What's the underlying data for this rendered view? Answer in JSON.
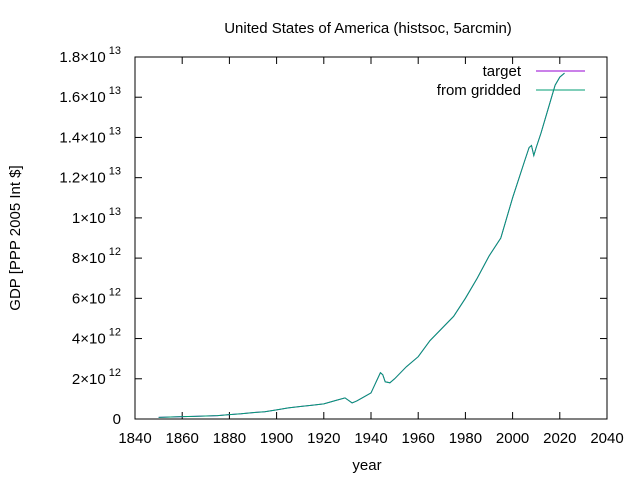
{
  "chart_data": {
    "type": "line",
    "title": "United States of America (histsoc, 5arcmin)",
    "xlabel": "year",
    "ylabel": "GDP [PPP 2005 Int $]",
    "xlim": [
      1840,
      2040
    ],
    "ylim": [
      0,
      18000000000000.0
    ],
    "x_ticks": [
      1840,
      1860,
      1880,
      1900,
      1920,
      1940,
      1960,
      1980,
      2000,
      2020,
      2040
    ],
    "y_ticks": [
      {
        "value": 0,
        "mantissa": "0",
        "exponent": ""
      },
      {
        "value": 2000000000000.0,
        "mantissa": "2×10",
        "exponent": "12"
      },
      {
        "value": 4000000000000.0,
        "mantissa": "4×10",
        "exponent": "12"
      },
      {
        "value": 6000000000000.0,
        "mantissa": "6×10",
        "exponent": "12"
      },
      {
        "value": 8000000000000.0,
        "mantissa": "8×10",
        "exponent": "12"
      },
      {
        "value": 10000000000000.0,
        "mantissa": "1×10",
        "exponent": "13"
      },
      {
        "value": 12000000000000.0,
        "mantissa": "1.2×10",
        "exponent": "13"
      },
      {
        "value": 14000000000000.0,
        "mantissa": "1.4×10",
        "exponent": "13"
      },
      {
        "value": 16000000000000.0,
        "mantissa": "1.6×10",
        "exponent": "13"
      },
      {
        "value": 18000000000000.0,
        "mantissa": "1.8×10",
        "exponent": "13"
      }
    ],
    "grid": false,
    "legend_position": "top-right",
    "x": [
      1850,
      1855,
      1860,
      1865,
      1870,
      1875,
      1880,
      1885,
      1890,
      1895,
      1900,
      1905,
      1910,
      1915,
      1920,
      1925,
      1929,
      1932,
      1934,
      1937,
      1940,
      1942,
      1944,
      1945,
      1946,
      1948,
      1950,
      1955,
      1960,
      1965,
      1970,
      1975,
      1980,
      1985,
      1990,
      1995,
      2000,
      2005,
      2007,
      2008,
      2009,
      2010,
      2012,
      2015,
      2018,
      2020,
      2022
    ],
    "series": [
      {
        "name": "target",
        "color": "#9400d3",
        "values": [
          80000000000.0,
          100000000000.0,
          120000000000.0,
          130000000000.0,
          150000000000.0,
          170000000000.0,
          220000000000.0,
          260000000000.0,
          320000000000.0,
          360000000000.0,
          450000000000.0,
          550000000000.0,
          620000000000.0,
          680000000000.0,
          750000000000.0,
          920000000000.0,
          1050000000000.0,
          800000000000.0,
          900000000000.0,
          1100000000000.0,
          1300000000000.0,
          1800000000000.0,
          2300000000000.0,
          2200000000000.0,
          1850000000000.0,
          1800000000000.0,
          2000000000000.0,
          2600000000000.0,
          3100000000000.0,
          3900000000000.0,
          4500000000000.0,
          5100000000000.0,
          6000000000000.0,
          7000000000000.0,
          8100000000000.0,
          9000000000000.0,
          11000000000000.0,
          12800000000000.0,
          13500000000000.0,
          13600000000000.0,
          13100000000000.0,
          13500000000000.0,
          14200000000000.0,
          15400000000000.0,
          16600000000000.0,
          17000000000000.0,
          17200000000000.0
        ]
      },
      {
        "name": "from gridded",
        "color": "#009e73",
        "values": [
          80000000000.0,
          100000000000.0,
          120000000000.0,
          130000000000.0,
          150000000000.0,
          170000000000.0,
          220000000000.0,
          260000000000.0,
          320000000000.0,
          360000000000.0,
          450000000000.0,
          550000000000.0,
          620000000000.0,
          680000000000.0,
          750000000000.0,
          920000000000.0,
          1050000000000.0,
          800000000000.0,
          900000000000.0,
          1100000000000.0,
          1300000000000.0,
          1800000000000.0,
          2300000000000.0,
          2200000000000.0,
          1850000000000.0,
          1800000000000.0,
          2000000000000.0,
          2600000000000.0,
          3100000000000.0,
          3900000000000.0,
          4500000000000.0,
          5100000000000.0,
          6000000000000.0,
          7000000000000.0,
          8100000000000.0,
          9000000000000.0,
          11000000000000.0,
          12800000000000.0,
          13500000000000.0,
          13600000000000.0,
          13100000000000.0,
          13500000000000.0,
          14200000000000.0,
          15400000000000.0,
          16600000000000.0,
          17000000000000.0,
          17200000000000.0
        ]
      }
    ]
  }
}
